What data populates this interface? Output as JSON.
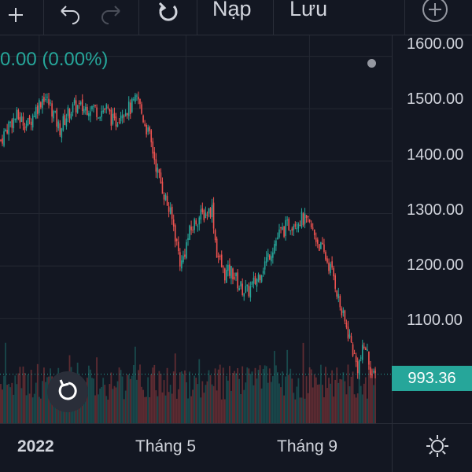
{
  "toolbar": {
    "reload_label": "Nạp",
    "save_label": "Lưu"
  },
  "legend": {
    "change_text": "0.00 (0.00%)"
  },
  "price_axis": {
    "labels": [
      "1600.00",
      "1500.00",
      "1400.00",
      "1300.00",
      "1200.00",
      "1100.00"
    ],
    "last_price": "993.36"
  },
  "time_axis": {
    "labels": [
      "2022",
      "Tháng 5",
      "Tháng 9"
    ]
  },
  "colors": {
    "background": "#131722",
    "up": "#26a69a",
    "down": "#ef5350",
    "text": "#d1d4dc",
    "grid": "#242833"
  },
  "chart_data": {
    "type": "candlestick",
    "ylim": [
      900,
      1640
    ],
    "y_ticks": [
      1100,
      1200,
      1300,
      1400,
      1500,
      1600
    ],
    "x_ticks": [
      "2022",
      "Tháng 5",
      "Tháng 9"
    ],
    "last_price": 993.36,
    "legend_change": "0.00 (0.00%)",
    "close_path": [
      {
        "x": 0.0,
        "v": 1440
      },
      {
        "x": 0.02,
        "v": 1470
      },
      {
        "x": 0.04,
        "v": 1485
      },
      {
        "x": 0.07,
        "v": 1470
      },
      {
        "x": 0.09,
        "v": 1500
      },
      {
        "x": 0.11,
        "v": 1525
      },
      {
        "x": 0.13,
        "v": 1500
      },
      {
        "x": 0.15,
        "v": 1460
      },
      {
        "x": 0.17,
        "v": 1490
      },
      {
        "x": 0.19,
        "v": 1505
      },
      {
        "x": 0.21,
        "v": 1500
      },
      {
        "x": 0.23,
        "v": 1505
      },
      {
        "x": 0.25,
        "v": 1495
      },
      {
        "x": 0.27,
        "v": 1500
      },
      {
        "x": 0.29,
        "v": 1470
      },
      {
        "x": 0.31,
        "v": 1500
      },
      {
        "x": 0.33,
        "v": 1500
      },
      {
        "x": 0.35,
        "v": 1520
      },
      {
        "x": 0.36,
        "v": 1490
      },
      {
        "x": 0.38,
        "v": 1445
      },
      {
        "x": 0.4,
        "v": 1380
      },
      {
        "x": 0.42,
        "v": 1330
      },
      {
        "x": 0.44,
        "v": 1280
      },
      {
        "x": 0.46,
        "v": 1200
      },
      {
        "x": 0.48,
        "v": 1260
      },
      {
        "x": 0.5,
        "v": 1290
      },
      {
        "x": 0.52,
        "v": 1300
      },
      {
        "x": 0.54,
        "v": 1310
      },
      {
        "x": 0.55,
        "v": 1230
      },
      {
        "x": 0.57,
        "v": 1185
      },
      {
        "x": 0.59,
        "v": 1190
      },
      {
        "x": 0.61,
        "v": 1160
      },
      {
        "x": 0.63,
        "v": 1150
      },
      {
        "x": 0.65,
        "v": 1170
      },
      {
        "x": 0.67,
        "v": 1200
      },
      {
        "x": 0.69,
        "v": 1230
      },
      {
        "x": 0.71,
        "v": 1260
      },
      {
        "x": 0.73,
        "v": 1275
      },
      {
        "x": 0.75,
        "v": 1285
      },
      {
        "x": 0.77,
        "v": 1290
      },
      {
        "x": 0.79,
        "v": 1275
      },
      {
        "x": 0.81,
        "v": 1245
      },
      {
        "x": 0.83,
        "v": 1215
      },
      {
        "x": 0.85,
        "v": 1180
      },
      {
        "x": 0.87,
        "v": 1110
      },
      {
        "x": 0.89,
        "v": 1065
      },
      {
        "x": 0.91,
        "v": 1005
      },
      {
        "x": 0.93,
        "v": 1050
      },
      {
        "x": 0.95,
        "v": 985
      },
      {
        "x": 0.96,
        "v": 993.36
      }
    ]
  }
}
